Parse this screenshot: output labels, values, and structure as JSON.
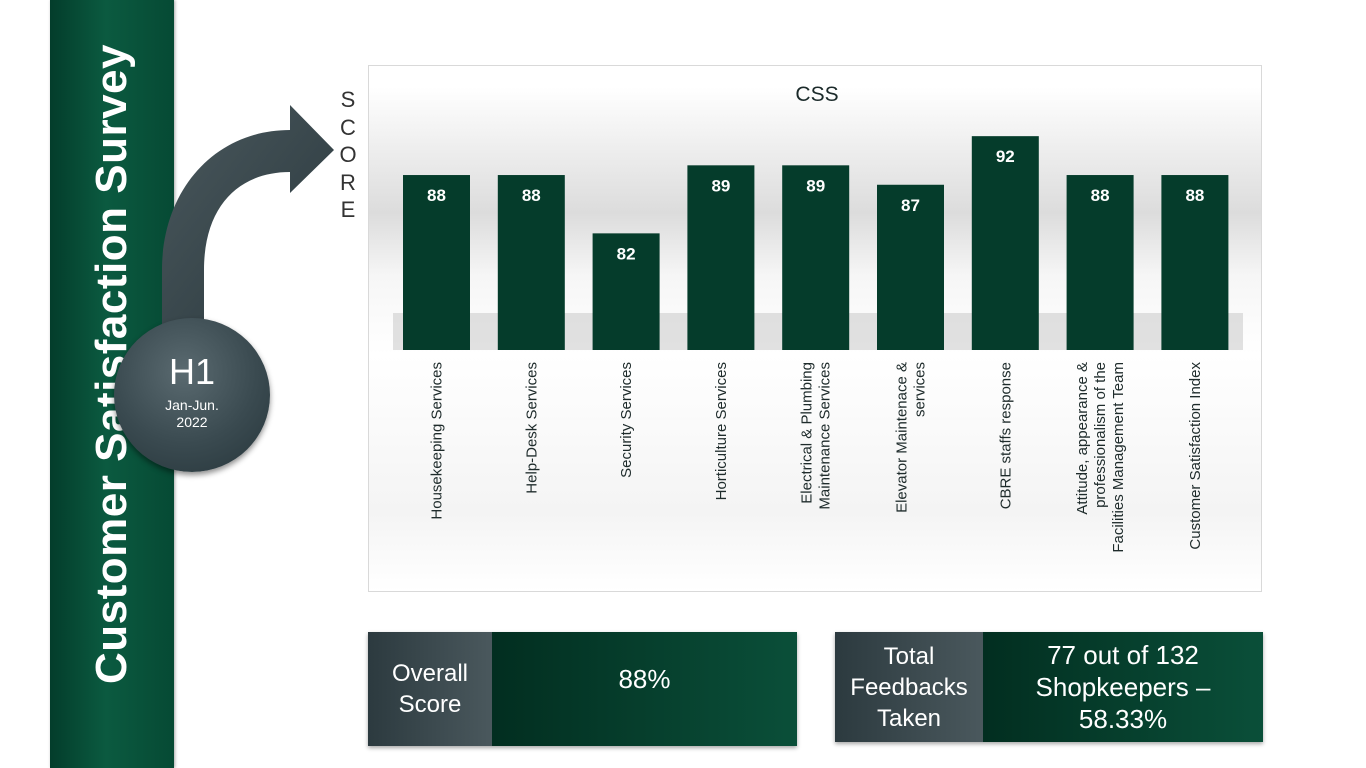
{
  "sidebar": {
    "title": "Customer Satisfaction Survey"
  },
  "period": {
    "label": "H1",
    "sub_line1": "Jan-Jun.",
    "sub_line2": "2022"
  },
  "score_axis_label": [
    "S",
    "C",
    "O",
    "R",
    "E"
  ],
  "chart_data": {
    "type": "bar",
    "title": "CSS",
    "xlabel": "",
    "ylabel": "SCORE",
    "categories": [
      [
        "Housekeeping Services"
      ],
      [
        "Help-Desk Services"
      ],
      [
        "Security Services"
      ],
      [
        "Horticulture Services"
      ],
      [
        "Electrical & Plumbing",
        "Maintenance Services"
      ],
      [
        "Elevator Maintenace &",
        "services"
      ],
      [
        "CBRE staffs response"
      ],
      [
        "Attitude, appearance &",
        "professionalism of the",
        "Facilities Management Team"
      ],
      [
        "Customer Satisfaction Index"
      ]
    ],
    "values": [
      88,
      88,
      82,
      89,
      89,
      87,
      92,
      88,
      88
    ],
    "ylim": [
      70,
      95
    ],
    "grid": false,
    "legend": "none",
    "bar_color": "#053c2b",
    "data_labels": true
  },
  "overall": {
    "label_line1": "Overall",
    "label_line2": "Score",
    "value": "88%"
  },
  "feedbacks": {
    "label_line1": "Total",
    "label_line2": "Feedbacks",
    "label_line3": "Taken",
    "value_line1": "77 out of 132",
    "value_line2": "Shopkeepers –",
    "value_line3": "58.33%"
  },
  "colors": {
    "sidebar_green": "#0b5a40",
    "dark_green": "#053c2b",
    "slate": "#3a4a50"
  }
}
